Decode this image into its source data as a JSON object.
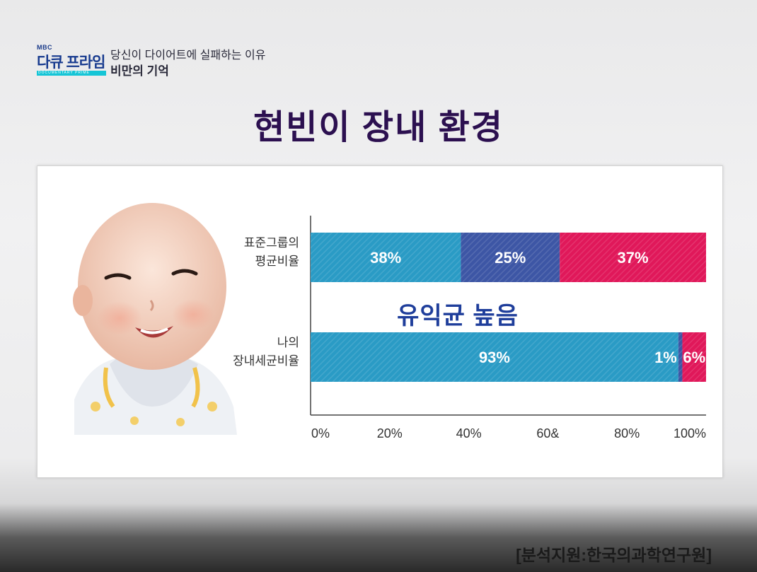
{
  "header": {
    "broadcaster": "MBC",
    "brand": "다큐 프라임",
    "brand_sub": "DOCUMENTARY PRIME",
    "line1": "당신이 다이어트에 실패하는 이유",
    "line2": "비만의 기억"
  },
  "colors": {
    "seg1": "#2a9bc5",
    "seg2": "#3d56a5",
    "seg3": "#e0185a",
    "title": "#2c1050",
    "highlight": "#1f3e9b"
  },
  "highlight_text": "유익균 높음",
  "source": "[분석지원:한국의과학연구원]",
  "chart_data": {
    "type": "bar",
    "orientation": "horizontal",
    "stacked": true,
    "title": "현빈이 장내 환경",
    "categories": [
      [
        "표준그룹의",
        "평균비율"
      ],
      [
        "나의",
        "장내세균비율"
      ]
    ],
    "series": [
      {
        "values": [
          38,
          93
        ],
        "labels": [
          "38%",
          "93%"
        ],
        "color": "#2a9bc5"
      },
      {
        "values": [
          25,
          1
        ],
        "labels": [
          "25%",
          "1%"
        ],
        "color": "#3d56a5"
      },
      {
        "values": [
          37,
          6
        ],
        "labels": [
          "37%",
          "6%"
        ],
        "color": "#e0185a"
      }
    ],
    "xlim": [
      0,
      100
    ],
    "xticks": [
      "0%",
      "20%",
      "40%",
      "60&",
      "80%",
      "100%"
    ],
    "grid": false
  }
}
